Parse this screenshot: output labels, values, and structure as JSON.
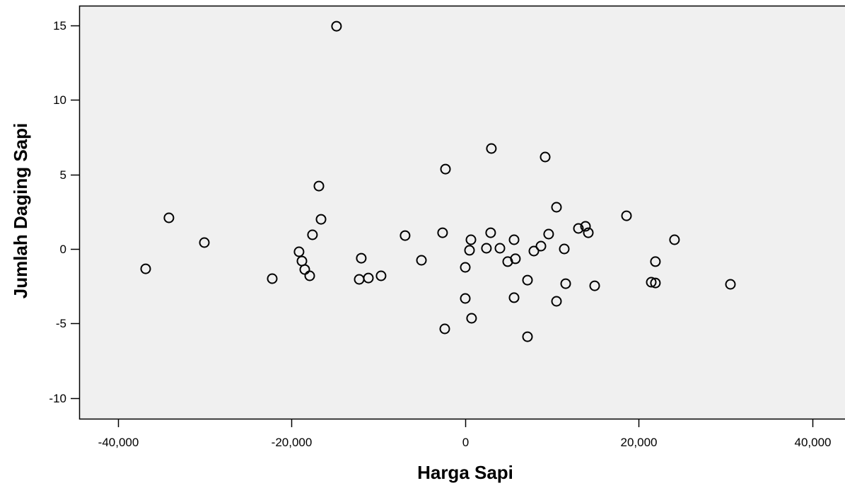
{
  "chart_data": {
    "type": "scatter",
    "xlabel": "Harga Sapi",
    "ylabel": "Jumlah Daging Sapi",
    "xlim": [
      -44480,
      43750
    ],
    "ylim": [
      -11.39,
      16.33
    ],
    "xticks": [
      -40000,
      -20000,
      0,
      20000,
      40000
    ],
    "xtick_labels": [
      "-40,000",
      "-20,000",
      "0",
      "20,000",
      "40,000"
    ],
    "yticks": [
      -10,
      -5,
      0,
      5,
      10,
      15
    ],
    "ytick_labels": [
      "-10",
      "-5",
      "0",
      "5",
      "10",
      "15"
    ],
    "grid": false,
    "legend": "none",
    "marker": "open-circle",
    "series": [
      {
        "points": [
          [
            -14830,
            14.95
          ],
          [
            3010,
            6.74
          ],
          [
            9210,
            6.17
          ],
          [
            -2280,
            5.36
          ],
          [
            -16860,
            4.22
          ],
          [
            -34140,
            2.09
          ],
          [
            10510,
            2.8
          ],
          [
            18580,
            2.23
          ],
          [
            -16620,
            1.99
          ],
          [
            -30060,
            0.43
          ],
          [
            -36820,
            -1.33
          ],
          [
            -17600,
            0.95
          ],
          [
            -19150,
            -0.19
          ],
          [
            -18820,
            -0.81
          ],
          [
            -18490,
            -1.38
          ],
          [
            -17920,
            -1.8
          ],
          [
            -22240,
            -1.99
          ],
          [
            -11980,
            -0.62
          ],
          [
            -12220,
            -2.04
          ],
          [
            -11160,
            -1.95
          ],
          [
            -9700,
            -1.8
          ],
          [
            -6930,
            0.9
          ],
          [
            -5050,
            -0.76
          ],
          [
            -2610,
            1.09
          ],
          [
            0,
            -1.23
          ],
          [
            0,
            -3.32
          ],
          [
            -2360,
            -5.36
          ],
          [
            650,
            0.62
          ],
          [
            490,
            -0.09
          ],
          [
            730,
            -4.65
          ],
          [
            2930,
            1.09
          ],
          [
            2440,
            0.05
          ],
          [
            3990,
            0.05
          ],
          [
            4890,
            -0.85
          ],
          [
            5620,
            0.62
          ],
          [
            5780,
            -0.66
          ],
          [
            5620,
            -3.27
          ],
          [
            7170,
            -2.09
          ],
          [
            7170,
            -5.89
          ],
          [
            7900,
            -0.14
          ],
          [
            8720,
            0.19
          ],
          [
            9610,
            1.0
          ],
          [
            11410,
            0.0
          ],
          [
            11570,
            -2.33
          ],
          [
            10510,
            -3.51
          ],
          [
            13040,
            1.38
          ],
          [
            13850,
            1.52
          ],
          [
            14180,
            1.09
          ],
          [
            14910,
            -2.47
          ],
          [
            21430,
            -2.23
          ],
          [
            21910,
            -2.28
          ],
          [
            21910,
            -0.85
          ],
          [
            24110,
            0.62
          ],
          [
            30550,
            -2.37
          ]
        ]
      }
    ]
  },
  "colors": {
    "plot_background": "#f0f0f0",
    "axis": "#000000",
    "marker": "#000000",
    "page_background": "#ffffff"
  }
}
